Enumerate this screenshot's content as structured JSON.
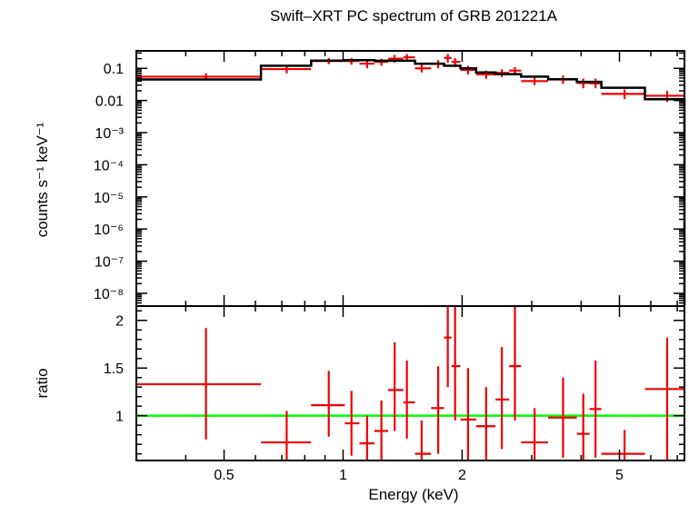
{
  "chart_data": {
    "type": "scatter",
    "title": "Swift–XRT PC spectrum of GRB 201221A",
    "xlabel": "Energy (keV)",
    "x_scale": "log",
    "xlim": [
      0.3,
      7.3
    ],
    "x_ticks": [
      {
        "value": 0.5,
        "label": "0.5"
      },
      {
        "value": 1,
        "label": "1"
      },
      {
        "value": 2,
        "label": "2"
      },
      {
        "value": 5,
        "label": "5"
      }
    ],
    "panels": [
      {
        "name": "spectrum",
        "ylabel": "counts s⁻¹ keV⁻¹",
        "y_scale": "log",
        "ylim": [
          4e-09,
          0.35
        ],
        "y_ticks": [
          {
            "value": 0.1,
            "label": "0.1"
          },
          {
            "value": 0.01,
            "label": "0.01"
          },
          {
            "value": 0.001,
            "label": "10⁻³"
          },
          {
            "value": 0.0001,
            "label": "10⁻⁴"
          },
          {
            "value": 1e-05,
            "label": "10⁻⁵"
          },
          {
            "value": 1e-06,
            "label": "10⁻⁶"
          },
          {
            "value": 1e-07,
            "label": "10⁻⁷"
          },
          {
            "value": 1e-08,
            "label": "10⁻⁸"
          }
        ],
        "data_points": [
          {
            "x": 0.45,
            "x_lo": 0.3,
            "x_hi": 0.62,
            "y": 0.055,
            "y_lo": 0.042,
            "y_hi": 0.07
          },
          {
            "x": 0.72,
            "x_lo": 0.62,
            "x_hi": 0.83,
            "y": 0.095,
            "y_lo": 0.07,
            "y_hi": 0.125
          },
          {
            "x": 0.92,
            "x_lo": 0.83,
            "x_hi": 1.01,
            "y": 0.17,
            "y_lo": 0.135,
            "y_hi": 0.21
          },
          {
            "x": 1.05,
            "x_lo": 1.01,
            "x_hi": 1.1,
            "y": 0.17,
            "y_lo": 0.13,
            "y_hi": 0.21
          },
          {
            "x": 1.15,
            "x_lo": 1.1,
            "x_hi": 1.2,
            "y": 0.14,
            "y_lo": 0.1,
            "y_hi": 0.18
          },
          {
            "x": 1.25,
            "x_lo": 1.2,
            "x_hi": 1.3,
            "y": 0.16,
            "y_lo": 0.12,
            "y_hi": 0.2
          },
          {
            "x": 1.35,
            "x_lo": 1.3,
            "x_hi": 1.42,
            "y": 0.2,
            "y_lo": 0.15,
            "y_hi": 0.26
          },
          {
            "x": 1.45,
            "x_lo": 1.42,
            "x_hi": 1.52,
            "y": 0.22,
            "y_lo": 0.17,
            "y_hi": 0.28
          },
          {
            "x": 1.58,
            "x_lo": 1.52,
            "x_hi": 1.67,
            "y": 0.1,
            "y_lo": 0.075,
            "y_hi": 0.13
          },
          {
            "x": 1.74,
            "x_lo": 1.67,
            "x_hi": 1.8,
            "y": 0.14,
            "y_lo": 0.1,
            "y_hi": 0.18
          },
          {
            "x": 1.84,
            "x_lo": 1.8,
            "x_hi": 1.88,
            "y": 0.21,
            "y_lo": 0.15,
            "y_hi": 0.28
          },
          {
            "x": 1.92,
            "x_lo": 1.88,
            "x_hi": 1.98,
            "y": 0.16,
            "y_lo": 0.11,
            "y_hi": 0.21
          },
          {
            "x": 2.07,
            "x_lo": 1.98,
            "x_hi": 2.17,
            "y": 0.09,
            "y_lo": 0.065,
            "y_hi": 0.12
          },
          {
            "x": 2.3,
            "x_lo": 2.17,
            "x_hi": 2.43,
            "y": 0.065,
            "y_lo": 0.047,
            "y_hi": 0.085
          },
          {
            "x": 2.52,
            "x_lo": 2.43,
            "x_hi": 2.63,
            "y": 0.072,
            "y_lo": 0.053,
            "y_hi": 0.094
          },
          {
            "x": 2.72,
            "x_lo": 2.63,
            "x_hi": 2.82,
            "y": 0.085,
            "y_lo": 0.062,
            "y_hi": 0.11
          },
          {
            "x": 3.05,
            "x_lo": 2.82,
            "x_hi": 3.3,
            "y": 0.04,
            "y_lo": 0.03,
            "y_hi": 0.053
          },
          {
            "x": 3.6,
            "x_lo": 3.3,
            "x_hi": 3.9,
            "y": 0.045,
            "y_lo": 0.033,
            "y_hi": 0.06
          },
          {
            "x": 4.05,
            "x_lo": 3.9,
            "x_hi": 4.2,
            "y": 0.035,
            "y_lo": 0.024,
            "y_hi": 0.048
          },
          {
            "x": 4.35,
            "x_lo": 4.2,
            "x_hi": 4.5,
            "y": 0.034,
            "y_lo": 0.024,
            "y_hi": 0.048
          },
          {
            "x": 5.15,
            "x_lo": 4.5,
            "x_hi": 5.8,
            "y": 0.016,
            "y_lo": 0.011,
            "y_hi": 0.022
          },
          {
            "x": 6.6,
            "x_lo": 5.8,
            "x_hi": 7.3,
            "y": 0.014,
            "y_lo": 0.009,
            "y_hi": 0.02
          }
        ],
        "model_step": [
          {
            "x_lo": 0.3,
            "x_hi": 0.62,
            "y": 0.045
          },
          {
            "x_lo": 0.62,
            "x_hi": 0.83,
            "y": 0.12
          },
          {
            "x_lo": 0.83,
            "x_hi": 1.01,
            "y": 0.175
          },
          {
            "x_lo": 1.01,
            "x_hi": 1.2,
            "y": 0.18
          },
          {
            "x_lo": 1.2,
            "x_hi": 1.52,
            "y": 0.172
          },
          {
            "x_lo": 1.52,
            "x_hi": 1.8,
            "y": 0.14
          },
          {
            "x_lo": 1.8,
            "x_hi": 1.98,
            "y": 0.12
          },
          {
            "x_lo": 1.98,
            "x_hi": 2.17,
            "y": 0.1
          },
          {
            "x_lo": 2.17,
            "x_hi": 2.43,
            "y": 0.075
          },
          {
            "x_lo": 2.43,
            "x_hi": 2.82,
            "y": 0.066
          },
          {
            "x_lo": 2.82,
            "x_hi": 3.3,
            "y": 0.055
          },
          {
            "x_lo": 3.3,
            "x_hi": 3.9,
            "y": 0.046
          },
          {
            "x_lo": 3.9,
            "x_hi": 4.5,
            "y": 0.038
          },
          {
            "x_lo": 4.5,
            "x_hi": 5.8,
            "y": 0.025
          },
          {
            "x_lo": 5.8,
            "x_hi": 7.3,
            "y": 0.011
          }
        ]
      },
      {
        "name": "ratio",
        "ylabel": "ratio",
        "y_scale": "linear",
        "ylim": [
          0.53,
          2.15
        ],
        "y_ticks": [
          {
            "value": 1,
            "label": "1"
          },
          {
            "value": 1.5,
            "label": "1.5"
          },
          {
            "value": 2,
            "label": "2"
          }
        ],
        "reference_line": {
          "y": 1.0,
          "color": "#00ff00"
        },
        "data_points": [
          {
            "x": 0.45,
            "x_lo": 0.3,
            "x_hi": 0.62,
            "y": 1.33,
            "y_lo": 0.75,
            "y_hi": 1.92
          },
          {
            "x": 0.72,
            "x_lo": 0.62,
            "x_hi": 0.83,
            "y": 0.72,
            "y_lo": 0.53,
            "y_hi": 1.05
          },
          {
            "x": 0.92,
            "x_lo": 0.83,
            "x_hi": 1.01,
            "y": 1.11,
            "y_lo": 0.78,
            "y_hi": 1.47
          },
          {
            "x": 1.05,
            "x_lo": 1.01,
            "x_hi": 1.1,
            "y": 0.92,
            "y_lo": 0.58,
            "y_hi": 1.26
          },
          {
            "x": 1.15,
            "x_lo": 1.1,
            "x_hi": 1.2,
            "y": 0.71,
            "y_lo": 0.53,
            "y_hi": 1.0
          },
          {
            "x": 1.25,
            "x_lo": 1.2,
            "x_hi": 1.3,
            "y": 0.84,
            "y_lo": 0.53,
            "y_hi": 1.16
          },
          {
            "x": 1.35,
            "x_lo": 1.3,
            "x_hi": 1.42,
            "y": 1.27,
            "y_lo": 0.84,
            "y_hi": 1.77
          },
          {
            "x": 1.45,
            "x_lo": 1.42,
            "x_hi": 1.52,
            "y": 1.14,
            "y_lo": 0.76,
            "y_hi": 1.58
          },
          {
            "x": 1.58,
            "x_lo": 1.52,
            "x_hi": 1.67,
            "y": 0.6,
            "y_lo": 0.53,
            "y_hi": 0.95
          },
          {
            "x": 1.74,
            "x_lo": 1.67,
            "x_hi": 1.8,
            "y": 1.08,
            "y_lo": 0.6,
            "y_hi": 1.52
          },
          {
            "x": 1.84,
            "x_lo": 1.8,
            "x_hi": 1.88,
            "y": 1.82,
            "y_lo": 1.3,
            "y_hi": 2.15
          },
          {
            "x": 1.92,
            "x_lo": 1.88,
            "x_hi": 1.98,
            "y": 1.52,
            "y_lo": 0.95,
            "y_hi": 2.15
          },
          {
            "x": 2.07,
            "x_lo": 1.98,
            "x_hi": 2.17,
            "y": 0.96,
            "y_lo": 0.53,
            "y_hi": 1.5
          },
          {
            "x": 2.3,
            "x_lo": 2.17,
            "x_hi": 2.43,
            "y": 0.89,
            "y_lo": 0.53,
            "y_hi": 1.3
          },
          {
            "x": 2.52,
            "x_lo": 2.43,
            "x_hi": 2.63,
            "y": 1.17,
            "y_lo": 0.65,
            "y_hi": 1.72
          },
          {
            "x": 2.72,
            "x_lo": 2.63,
            "x_hi": 2.82,
            "y": 1.52,
            "y_lo": 0.95,
            "y_hi": 2.15
          },
          {
            "x": 3.05,
            "x_lo": 2.82,
            "x_hi": 3.3,
            "y": 0.72,
            "y_lo": 0.53,
            "y_hi": 1.08
          },
          {
            "x": 3.6,
            "x_lo": 3.3,
            "x_hi": 3.9,
            "y": 0.98,
            "y_lo": 0.56,
            "y_hi": 1.4
          },
          {
            "x": 4.05,
            "x_lo": 3.9,
            "x_hi": 4.2,
            "y": 0.81,
            "y_lo": 0.53,
            "y_hi": 1.23
          },
          {
            "x": 4.35,
            "x_lo": 4.2,
            "x_hi": 4.5,
            "y": 1.07,
            "y_lo": 0.56,
            "y_hi": 1.58
          },
          {
            "x": 5.15,
            "x_lo": 4.5,
            "x_hi": 5.8,
            "y": 0.6,
            "y_lo": 0.53,
            "y_hi": 0.85
          },
          {
            "x": 6.6,
            "x_lo": 5.8,
            "x_hi": 7.3,
            "y": 1.28,
            "y_lo": 0.53,
            "y_hi": 1.82
          }
        ]
      }
    ],
    "colors": {
      "data": "#ee0000",
      "model": "#000000",
      "reference": "#00ff00",
      "axes": "#000000"
    },
    "grid": false
  }
}
